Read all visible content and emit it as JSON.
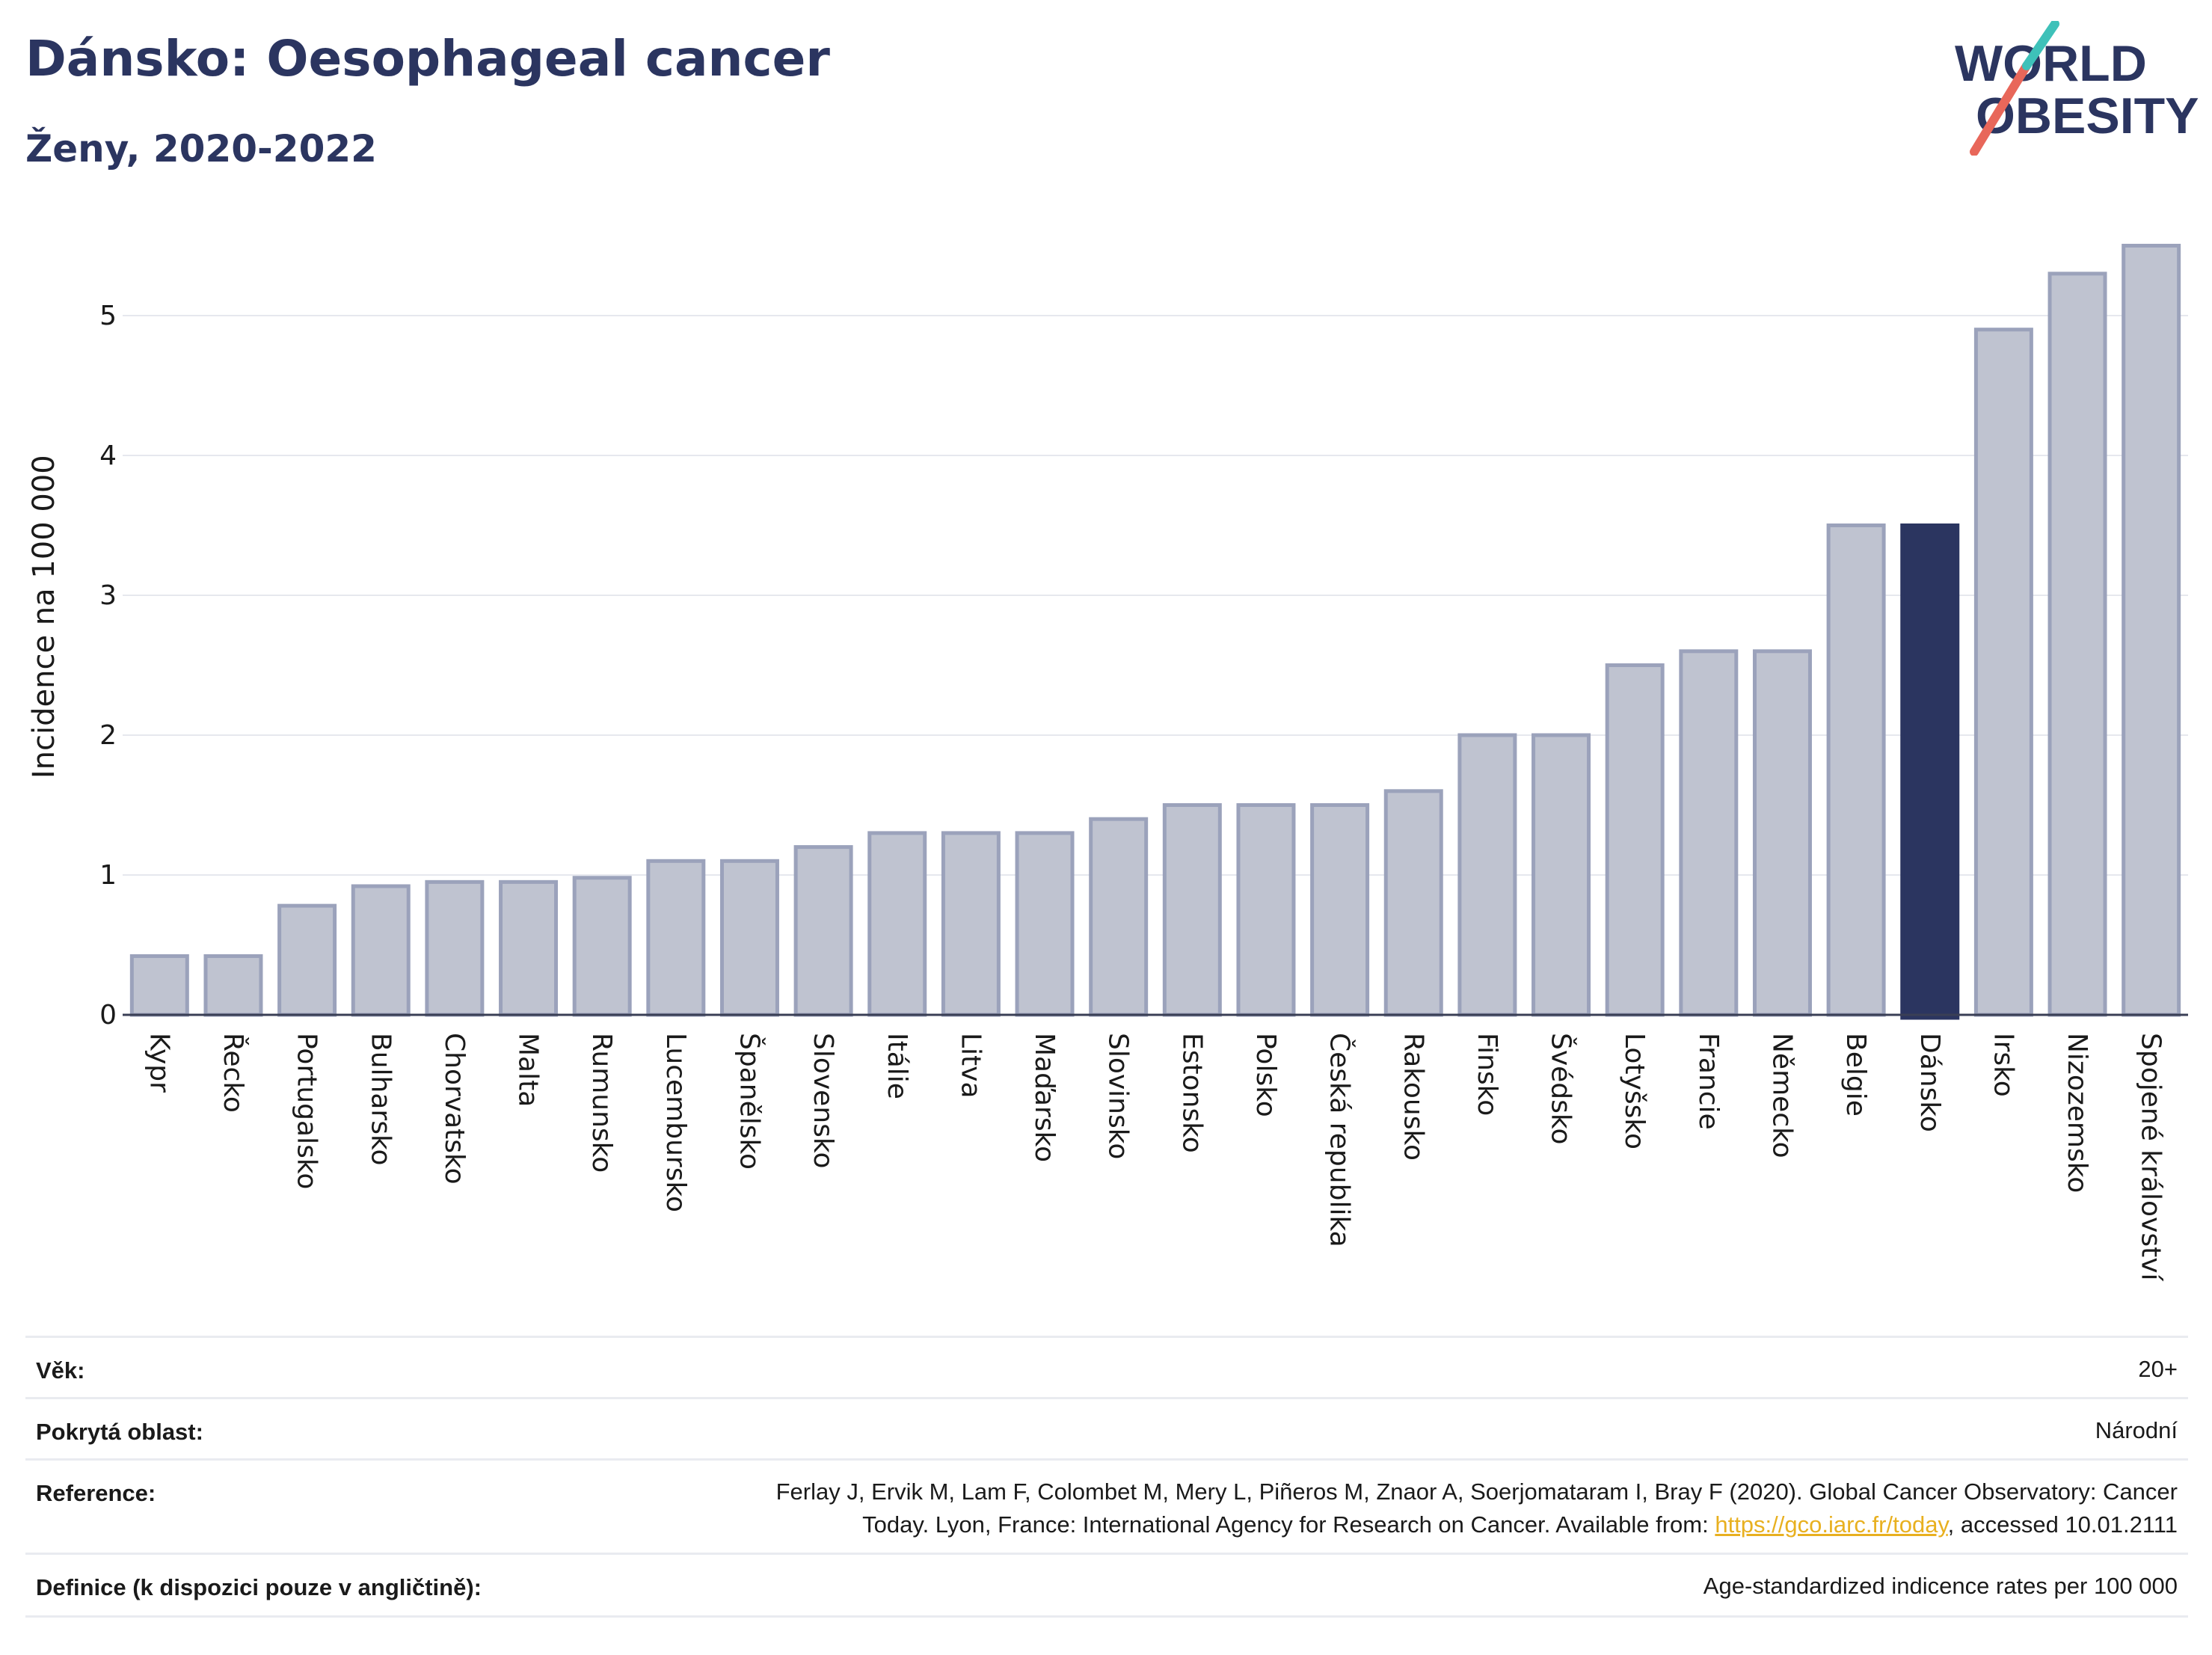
{
  "header": {
    "title": "Dánsko: Oesophageal cancer",
    "subtitle": "Ženy, 2020-2022"
  },
  "logo": {
    "line1": "WORLD",
    "line2": "OBESITY",
    "colors": {
      "text": "#2b3560",
      "slash_red": "#e8675a",
      "slash_teal": "#3ec1b9"
    }
  },
  "chart_data": {
    "type": "bar",
    "ylabel": "Incidence na 100 000",
    "xlabel": "",
    "ylim": [
      0,
      5.6
    ],
    "yticks": [
      0,
      1,
      2,
      3,
      4,
      5
    ],
    "grid": true,
    "highlight": "Dánsko",
    "colors": {
      "bar": "#bfc3d0",
      "bar_edge": "#9ba2bb",
      "highlight": "#2b3560",
      "grid": "#e6e8ee"
    },
    "categories": [
      "Kypr",
      "Řecko",
      "Portugalsko",
      "Bulharsko",
      "Chorvatsko",
      "Malta",
      "Rumunsko",
      "Lucembursko",
      "Španělsko",
      "Slovensko",
      "Itálie",
      "Litva",
      "Maďarsko",
      "Slovinsko",
      "Estonsko",
      "Polsko",
      "Česká republika",
      "Rakousko",
      "Finsko",
      "Švédsko",
      "Lotyšsko",
      "Francie",
      "Německo",
      "Belgie",
      "Dánsko",
      "Irsko",
      "Nizozemsko",
      "Spojené království"
    ],
    "values": [
      0.42,
      0.42,
      0.78,
      0.92,
      0.95,
      0.95,
      0.98,
      1.1,
      1.1,
      1.2,
      1.3,
      1.3,
      1.3,
      1.4,
      1.5,
      1.5,
      1.5,
      1.6,
      2.0,
      2.0,
      2.5,
      2.6,
      2.6,
      3.5,
      3.5,
      4.9,
      5.3,
      5.5
    ]
  },
  "meta": {
    "age_label": "Věk:",
    "age_value": "20+",
    "area_label": "Pokrytá oblast:",
    "area_value": "Národní",
    "reference_label": "Reference:",
    "reference_line1": "Ferlay J, Ervik M, Lam F, Colombet M, Mery L, Piñeros M, Znaor A, Soerjomataram I, Bray F (2020). Global Cancer Observatory: Cancer",
    "reference_line2_pre": "Today. Lyon, France: International Agency for Research on Cancer. Available from: ",
    "reference_link": "https://gco.iarc.fr/today",
    "reference_line2_post": ", accessed 10.01.2111",
    "definition_label": "Definice (k dispozici pouze v angličtině):",
    "definition_value": "Age-standardized indicence rates per 100 000"
  }
}
